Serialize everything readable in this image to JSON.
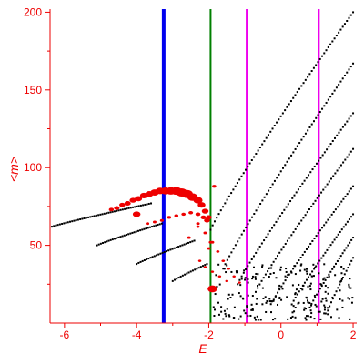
{
  "chart_data": {
    "type": "scatter",
    "xlabel": "E",
    "ylabel": "<m>",
    "xlim": [
      -6.4,
      2.1
    ],
    "ylim": [
      0,
      202
    ],
    "x_ticks": [
      -6,
      -4,
      -2,
      0,
      2
    ],
    "y_ticks": [
      50,
      100,
      150,
      200
    ],
    "x_tick_labels": [
      "-6",
      "-4",
      "-2",
      "0",
      "2"
    ],
    "y_tick_labels": [
      "50",
      "100",
      "150",
      "200"
    ],
    "grid": false,
    "colors": {
      "axis": "#ee0000",
      "black_points": "#000000",
      "red_points": "#ee0000",
      "blue_line": "#0000ee",
      "green_line": "#008000",
      "magenta_line": "#ee00ee"
    },
    "vertical_lines": [
      {
        "x": -3.25,
        "color": "#0000ee",
        "width": 4
      },
      {
        "x": -1.95,
        "color": "#008000",
        "width": 2
      },
      {
        "x": -0.95,
        "color": "#ee00ee",
        "width": 2
      },
      {
        "x": 1.05,
        "color": "#ee00ee",
        "width": 2
      }
    ],
    "black_branches": [
      {
        "x_start": -6.35,
        "m_start": 62,
        "x_end": -3.6,
        "m_end": 77,
        "count": 50
      },
      {
        "x_start": -5.1,
        "m_start": 50,
        "x_end": -3.3,
        "m_end": 64,
        "count": 34
      },
      {
        "x_start": -4.0,
        "m_start": 38,
        "x_end": -2.4,
        "m_end": 53,
        "count": 30
      },
      {
        "x_start": -3.0,
        "m_start": 27,
        "x_end": -2.05,
        "m_end": 38,
        "count": 18
      },
      {
        "x_start": -1.95,
        "m_start": 60,
        "x_end": 2.0,
        "m_end": 200,
        "count": 70
      },
      {
        "x_start": -1.6,
        "m_start": 35,
        "x_end": 2.0,
        "m_end": 167,
        "count": 64
      },
      {
        "x_start": -1.2,
        "m_start": 25,
        "x_end": 2.0,
        "m_end": 135,
        "count": 58
      },
      {
        "x_start": -0.7,
        "m_start": 20,
        "x_end": 2.0,
        "m_end": 112,
        "count": 50
      },
      {
        "x_start": -0.2,
        "m_start": 15,
        "x_end": 2.0,
        "m_end": 88,
        "count": 42
      },
      {
        "x_start": 0.3,
        "m_start": 12,
        "x_end": 2.0,
        "m_end": 70,
        "count": 34
      },
      {
        "x_start": 0.8,
        "m_start": 10,
        "x_end": 2.0,
        "m_end": 55,
        "count": 26
      },
      {
        "x_start": 1.3,
        "m_start": 8,
        "x_end": 2.0,
        "m_end": 42,
        "count": 16
      }
    ],
    "black_cloud": {
      "x_range": [
        -1.9,
        2.0
      ],
      "m_range": [
        2,
        38
      ],
      "count": 220
    },
    "red_points": [
      {
        "x": -4.7,
        "m": 73,
        "r": 2.2
      },
      {
        "x": -4.55,
        "m": 74,
        "r": 2.4
      },
      {
        "x": -4.4,
        "m": 76,
        "r": 2.6
      },
      {
        "x": -4.25,
        "m": 77,
        "r": 2.8
      },
      {
        "x": -4.1,
        "m": 79,
        "r": 3.0
      },
      {
        "x": -3.95,
        "m": 80,
        "r": 3.2
      },
      {
        "x": -3.8,
        "m": 82,
        "r": 3.4
      },
      {
        "x": -3.65,
        "m": 83,
        "r": 3.6
      },
      {
        "x": -3.5,
        "m": 84,
        "r": 3.8
      },
      {
        "x": -3.35,
        "m": 85,
        "r": 4.0
      },
      {
        "x": -3.2,
        "m": 85,
        "r": 4.2
      },
      {
        "x": -3.05,
        "m": 85,
        "r": 4.5
      },
      {
        "x": -2.9,
        "m": 85,
        "r": 4.8
      },
      {
        "x": -2.75,
        "m": 84,
        "r": 5.0
      },
      {
        "x": -2.6,
        "m": 83,
        "r": 5.0
      },
      {
        "x": -2.45,
        "m": 81,
        "r": 4.6
      },
      {
        "x": -2.3,
        "m": 79,
        "r": 4.0
      },
      {
        "x": -2.2,
        "m": 76,
        "r": 3.4
      },
      {
        "x": -2.1,
        "m": 72,
        "r": 3.0
      },
      {
        "x": -2.0,
        "m": 68,
        "r": 2.6
      },
      {
        "x": -4.0,
        "m": 70,
        "r": 3.4
      },
      {
        "x": -3.7,
        "m": 64,
        "r": 1.6
      },
      {
        "x": -3.5,
        "m": 65,
        "r": 1.6
      },
      {
        "x": -3.3,
        "m": 66,
        "r": 1.7
      },
      {
        "x": -3.1,
        "m": 68,
        "r": 1.8
      },
      {
        "x": -2.9,
        "m": 69,
        "r": 1.8
      },
      {
        "x": -2.7,
        "m": 70,
        "r": 1.9
      },
      {
        "x": -2.5,
        "m": 71,
        "r": 2.0
      },
      {
        "x": -2.3,
        "m": 70,
        "r": 2.2
      },
      {
        "x": -2.15,
        "m": 68,
        "r": 2.4
      },
      {
        "x": -2.05,
        "m": 66,
        "r": 2.6
      },
      {
        "x": -2.3,
        "m": 64,
        "r": 1.6
      },
      {
        "x": -2.1,
        "m": 58,
        "r": 1.6
      },
      {
        "x": -1.9,
        "m": 52,
        "r": 1.6
      },
      {
        "x": -1.75,
        "m": 46,
        "r": 1.5
      },
      {
        "x": -1.6,
        "m": 40,
        "r": 1.5
      },
      {
        "x": -1.45,
        "m": 35,
        "r": 1.4
      },
      {
        "x": -1.3,
        "m": 30,
        "r": 1.4
      },
      {
        "x": -1.15,
        "m": 26,
        "r": 1.3
      },
      {
        "x": -2.25,
        "m": 40,
        "r": 1.4
      },
      {
        "x": -2.1,
        "m": 36,
        "r": 1.4
      },
      {
        "x": -1.9,
        "m": 33,
        "r": 1.4
      },
      {
        "x": -1.7,
        "m": 30,
        "r": 1.4
      },
      {
        "x": -1.5,
        "m": 27,
        "r": 1.4
      },
      {
        "x": -1.9,
        "m": 22,
        "r": 4.2
      },
      {
        "x": -1.95,
        "m": 52,
        "r": 1.6
      },
      {
        "x": -2.0,
        "m": 48,
        "r": 1.6
      },
      {
        "x": -2.55,
        "m": 55,
        "r": 1.6
      },
      {
        "x": -1.85,
        "m": 88,
        "r": 1.8
      },
      {
        "x": -2.3,
        "m": 62,
        "r": 1.5
      }
    ]
  }
}
